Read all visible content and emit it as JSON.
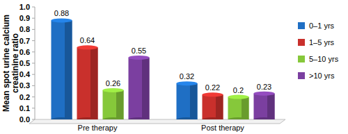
{
  "chart_data": {
    "type": "bar",
    "y_label": "Mean spot urine calcium creatinine ratio",
    "categories": [
      "Pre therapy",
      "Post therapy"
    ],
    "series": [
      {
        "name": "0–1 yrs",
        "color": "#1f6fc4",
        "values": [
          0.88,
          0.32
        ]
      },
      {
        "name": "1–5 yrs",
        "color": "#c9302c",
        "values": [
          0.64,
          0.22
        ]
      },
      {
        "name": "5–10 yrs",
        "color": "#86c83a",
        "values": [
          0.26,
          0.2
        ]
      },
      {
        "name": ">10 yrs",
        "color": "#7b3fa0",
        "values": [
          0.55,
          0.23
        ]
      }
    ],
    "ylim": [
      0,
      1
    ],
    "yticks": [
      {
        "value": 0,
        "label": "0.0"
      },
      0.1,
      0.2,
      0.3,
      0.4,
      0.5,
      0.6,
      0.7,
      0.8,
      0.9,
      {
        "value": 1,
        "label": "1.0"
      }
    ],
    "grid": false,
    "legend": "right",
    "data_labels": true
  }
}
